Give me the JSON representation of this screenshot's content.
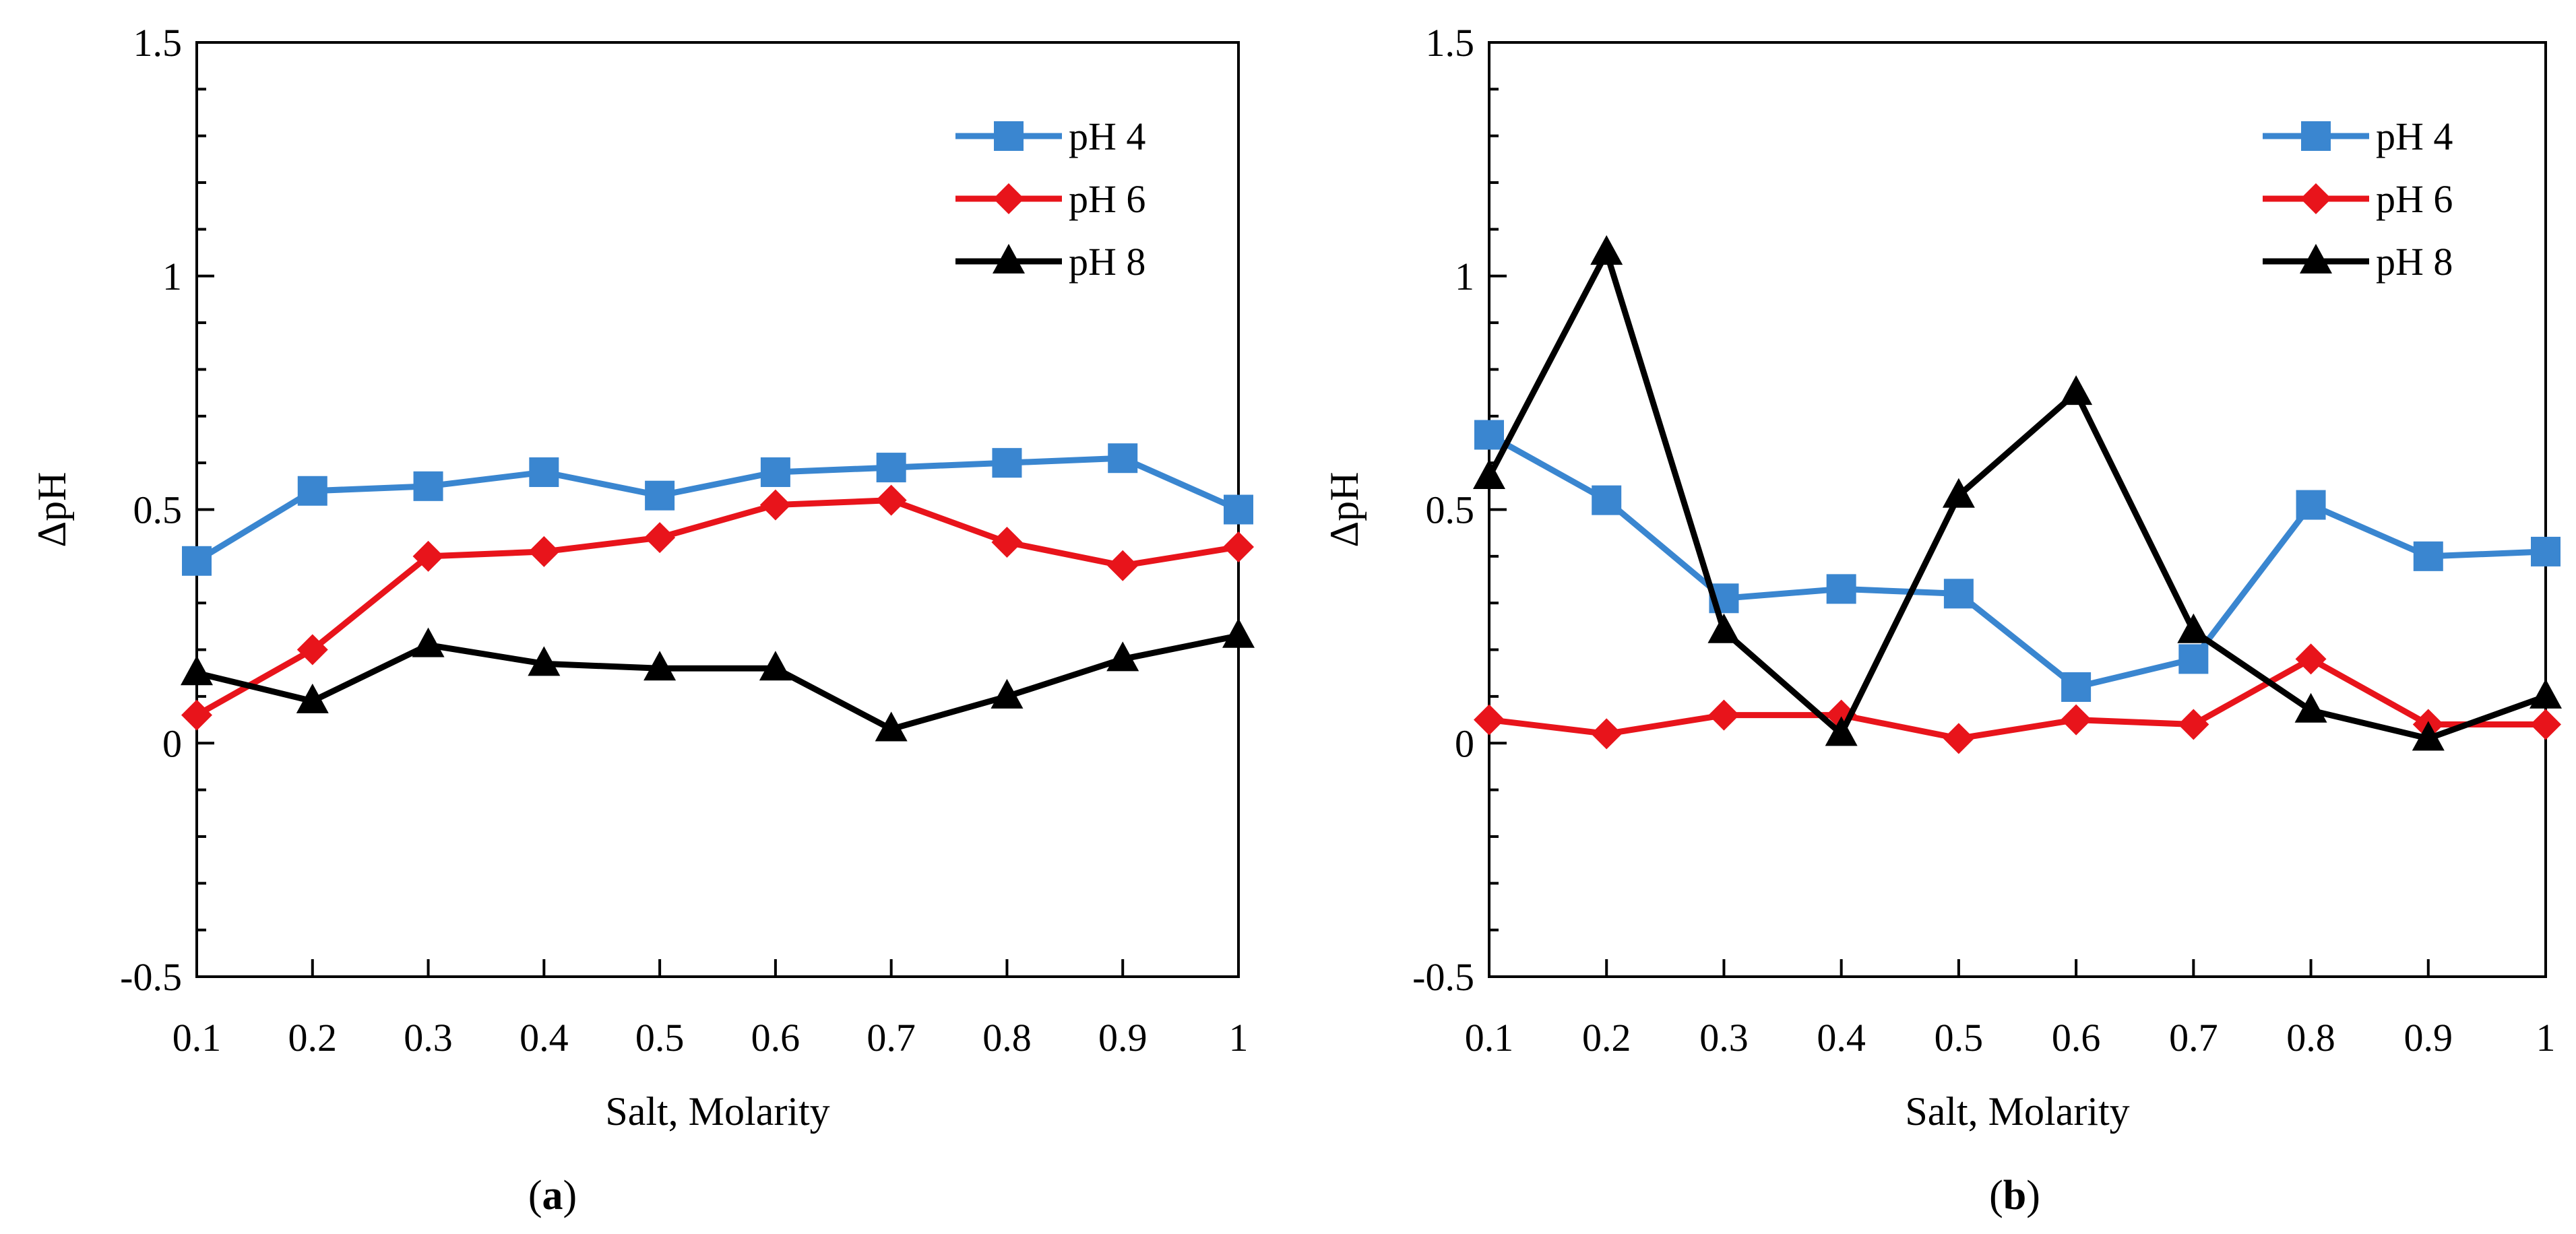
{
  "chart_data": [
    {
      "type": "line",
      "panel_id": "a",
      "panel_label": "a",
      "xlabel": "Salt, Molarity",
      "ylabel": "ΔpH",
      "xlim": [
        0.1,
        1
      ],
      "ylim": [
        -0.5,
        1.5
      ],
      "x_ticks": [
        "0.1",
        "0.2",
        "0.3",
        "0.4",
        "0.5",
        "0.6",
        "0.7",
        "0.8",
        "0.9",
        "1"
      ],
      "y_ticks": [
        "-0.5",
        "0",
        "0.5",
        "1",
        "1.5"
      ],
      "x": [
        0.1,
        0.2,
        0.3,
        0.4,
        0.5,
        0.6,
        0.7,
        0.8,
        0.9,
        1.0
      ],
      "legend_position": "top-right",
      "series": [
        {
          "name": "pH 4",
          "color": "#3a86d0",
          "marker": "square",
          "values": [
            0.39,
            0.54,
            0.55,
            0.58,
            0.53,
            0.58,
            0.59,
            0.6,
            0.61,
            0.5
          ]
        },
        {
          "name": "pH 6",
          "color": "#e8141b",
          "marker": "diamond",
          "values": [
            0.06,
            0.2,
            0.4,
            0.41,
            0.44,
            0.51,
            0.52,
            0.43,
            0.38,
            0.42
          ]
        },
        {
          "name": "pH 8",
          "color": "#000000",
          "marker": "triangle",
          "values": [
            0.15,
            0.09,
            0.21,
            0.17,
            0.16,
            0.16,
            0.03,
            0.1,
            0.18,
            0.23
          ]
        }
      ]
    },
    {
      "type": "line",
      "panel_id": "b",
      "panel_label": "b",
      "xlabel": "Salt, Molarity",
      "ylabel": "ΔpH",
      "xlim": [
        0.1,
        1
      ],
      "ylim": [
        -0.5,
        1.5
      ],
      "x_ticks": [
        "0.1",
        "0.2",
        "0.3",
        "0.4",
        "0.5",
        "0.6",
        "0.7",
        "0.8",
        "0.9",
        "1"
      ],
      "y_ticks": [
        "-0.5",
        "0",
        "0.5",
        "1",
        "1.5"
      ],
      "x": [
        0.1,
        0.2,
        0.3,
        0.4,
        0.5,
        0.6,
        0.7,
        0.8,
        0.9,
        1.0
      ],
      "legend_position": "top-right",
      "series": [
        {
          "name": "pH 4",
          "color": "#3a86d0",
          "marker": "square",
          "values": [
            0.66,
            0.52,
            0.31,
            0.33,
            0.32,
            0.12,
            0.18,
            0.51,
            0.4,
            0.41
          ]
        },
        {
          "name": "pH 6",
          "color": "#e8141b",
          "marker": "diamond",
          "values": [
            0.05,
            0.02,
            0.06,
            0.06,
            0.01,
            0.05,
            0.04,
            0.18,
            0.04,
            0.04
          ]
        },
        {
          "name": "pH 8",
          "color": "#000000",
          "marker": "triangle",
          "values": [
            0.57,
            1.05,
            0.24,
            0.02,
            0.53,
            0.75,
            0.24,
            0.07,
            0.01,
            0.1
          ]
        }
      ]
    }
  ]
}
